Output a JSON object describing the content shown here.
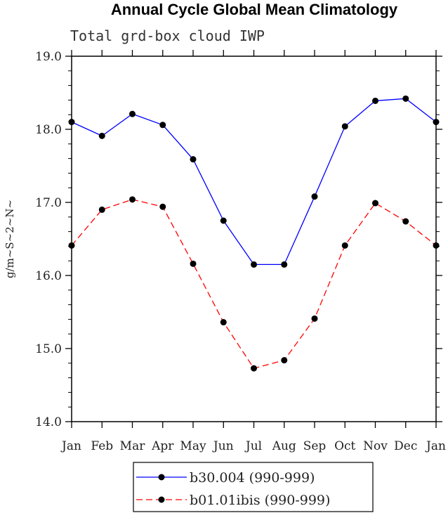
{
  "chart_data": {
    "type": "line",
    "title": "Annual Cycle Global Mean Climatology",
    "subtitle": "Total grd-box cloud IWP",
    "ylabel": "g/m~S~2~N~",
    "xlabel": "",
    "ylim": [
      14.0,
      19.0
    ],
    "yticks": [
      "14.0",
      "15.0",
      "16.0",
      "17.0",
      "18.0",
      "19.0"
    ],
    "categories": [
      "Jan",
      "Feb",
      "Mar",
      "Apr",
      "May",
      "Jun",
      "Jul",
      "Aug",
      "Sep",
      "Oct",
      "Nov",
      "Dec",
      "Jan"
    ],
    "series": [
      {
        "name": "b30.004 (990-999)",
        "color": "#0000ff",
        "style": "solid",
        "values": [
          18.1,
          17.91,
          18.21,
          18.06,
          17.59,
          16.75,
          16.15,
          16.15,
          17.08,
          18.04,
          18.39,
          18.42,
          18.1
        ]
      },
      {
        "name": "b01.01ibis (990-999)",
        "color": "#ff0000",
        "style": "dashed",
        "values": [
          16.41,
          16.9,
          17.04,
          16.94,
          16.16,
          15.36,
          14.73,
          14.84,
          15.41,
          16.41,
          16.99,
          16.74,
          16.41
        ]
      }
    ],
    "legend_position": "bottom-center",
    "grid": false
  }
}
